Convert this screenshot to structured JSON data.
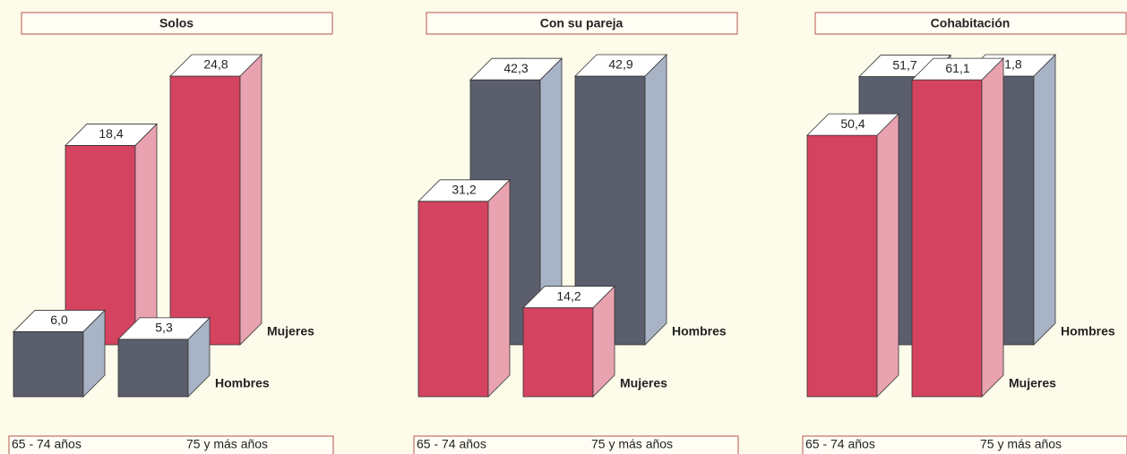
{
  "chart_data": [
    {
      "type": "bar3d",
      "title": "Solos",
      "categories": [
        "65 - 74 años",
        "75 y más años"
      ],
      "series": [
        {
          "name": "Mujeres",
          "color": "#d4435f",
          "side_color": "#e9a3b0",
          "values": [
            18.4,
            24.8
          ],
          "value_labels": [
            "18,4",
            "24,8"
          ]
        },
        {
          "name": "Hombres",
          "color": "#5b5e6c",
          "side_color": "#a9b3c6",
          "values": [
            6.0,
            5.3
          ],
          "value_labels": [
            "6,0",
            "5,3"
          ]
        }
      ]
    },
    {
      "type": "bar3d",
      "title": "Con su pareja",
      "categories": [
        "65 - 74 años",
        "75 y más años"
      ],
      "series": [
        {
          "name": "Hombres",
          "color": "#5b5e6c",
          "side_color": "#a9b3c6",
          "values": [
            42.3,
            42.9
          ],
          "value_labels": [
            "42,3",
            "42,9"
          ]
        },
        {
          "name": "Mujeres",
          "color": "#d4435f",
          "side_color": "#e9a3b0",
          "values": [
            31.2,
            14.2
          ],
          "value_labels": [
            "31,2",
            "14,2"
          ]
        }
      ]
    },
    {
      "type": "bar3d",
      "title": "Cohabitación",
      "categories": [
        "65 - 74 años",
        "75 y más años"
      ],
      "series": [
        {
          "name": "Hombres",
          "color": "#5b5e6c",
          "side_color": "#a9b3c6",
          "values": [
            51.7,
            51.8
          ],
          "value_labels": [
            "51,7",
            "51,8"
          ]
        },
        {
          "name": "Mujeres",
          "color": "#d4435f",
          "side_color": "#e9a3b0",
          "values": [
            50.4,
            61.1
          ],
          "value_labels": [
            "50,4",
            "61,1"
          ]
        }
      ]
    }
  ]
}
